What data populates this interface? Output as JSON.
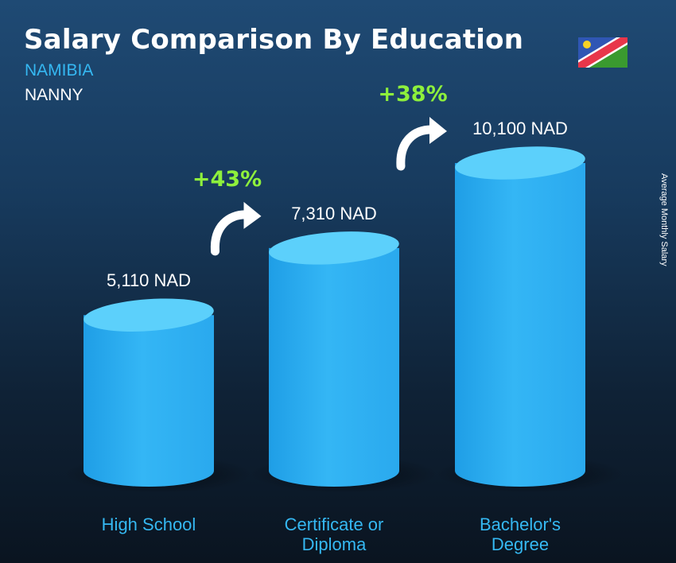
{
  "header": {
    "title": "Salary Comparison By Education",
    "country": "NAMIBIA",
    "job": "NANNY"
  },
  "side_label": "Average Monthly Salary",
  "colors": {
    "bar": "#2db1f2",
    "bar_top": "#5cd0fb",
    "percent": "#8ef03c",
    "category": "#35b8f2"
  },
  "chart_data": {
    "type": "bar",
    "categories": [
      "High School",
      "Certificate or\nDiploma",
      "Bachelor's\nDegree"
    ],
    "values": [
      5110,
      7310,
      10100
    ],
    "value_labels": [
      "5,110 NAD",
      "7,310 NAD",
      "10,100 NAD"
    ],
    "unit": "NAD",
    "increases": [
      "+43%",
      "+38%"
    ],
    "ylabel": "Average Monthly Salary"
  }
}
